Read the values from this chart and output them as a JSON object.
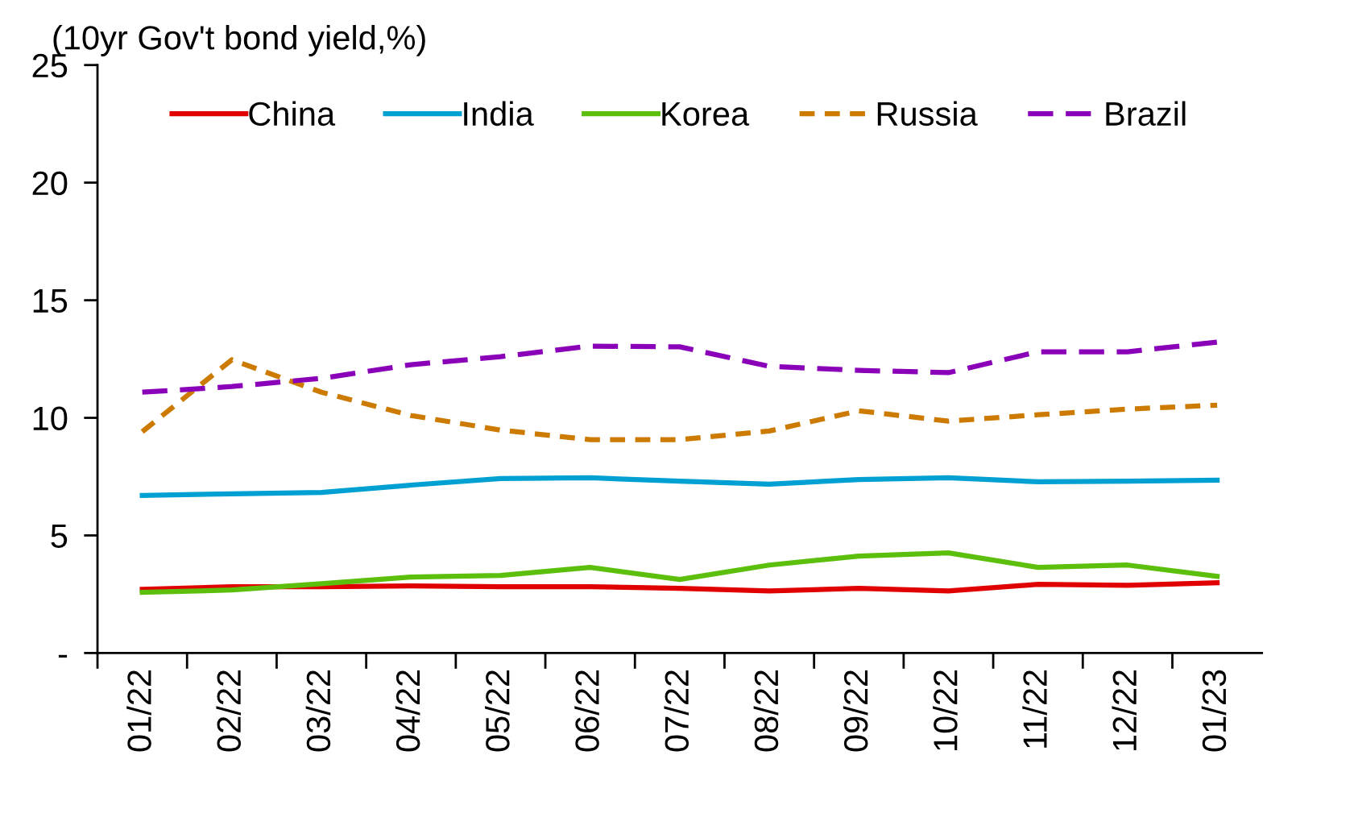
{
  "chart_data": {
    "type": "line",
    "ylabel": "(10yr Gov't bond yield,%)",
    "categories": [
      "01/22",
      "02/22",
      "03/22",
      "04/22",
      "05/22",
      "06/22",
      "07/22",
      "08/22",
      "09/22",
      "10/22",
      "11/22",
      "12/22",
      "01/23"
    ],
    "series": [
      {
        "name": "China",
        "color": "#e00000",
        "line_style": "solid",
        "values": [
          2.71,
          2.82,
          2.82,
          2.85,
          2.82,
          2.82,
          2.75,
          2.64,
          2.75,
          2.64,
          2.92,
          2.88,
          2.99
        ]
      },
      {
        "name": "India",
        "color": "#00a0d2",
        "line_style": "solid",
        "values": [
          6.7,
          6.77,
          6.83,
          7.14,
          7.42,
          7.45,
          7.31,
          7.18,
          7.38,
          7.45,
          7.28,
          7.31,
          7.35
        ]
      },
      {
        "name": "Korea",
        "color": "#5cbf0c",
        "line_style": "solid",
        "values": [
          2.58,
          2.68,
          2.95,
          3.23,
          3.3,
          3.64,
          3.13,
          3.74,
          4.12,
          4.26,
          3.64,
          3.74,
          3.26
        ]
      },
      {
        "name": "Russia",
        "color": "#cc7a00",
        "line_style": "dotted",
        "values": [
          9.41,
          12.47,
          11.09,
          10.1,
          9.48,
          9.07,
          9.07,
          9.44,
          10.3,
          9.86,
          10.13,
          10.37,
          10.54
        ]
      },
      {
        "name": "Brazil",
        "color": "#8a00b8",
        "line_style": "dashed",
        "values": [
          11.09,
          11.33,
          11.68,
          12.26,
          12.6,
          13.05,
          13.02,
          12.19,
          12.02,
          11.92,
          12.81,
          12.81,
          13.22
        ]
      }
    ],
    "ylim": [
      0,
      25
    ],
    "yticks": [
      {
        "value": 0,
        "label": "-"
      },
      5,
      10,
      15,
      20,
      25
    ],
    "grid": false,
    "legend": "top",
    "marker": "none"
  }
}
